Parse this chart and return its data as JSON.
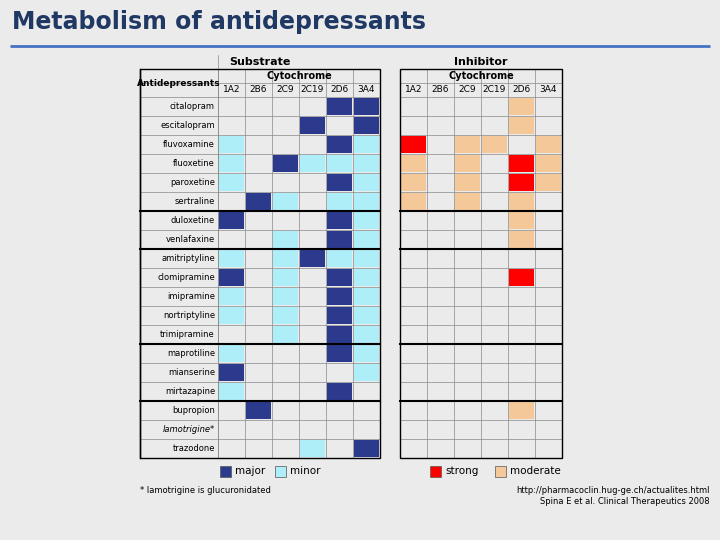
{
  "title": "Metabolism of antidepressants",
  "title_color": "#1F3864",
  "subtitle_url": "http://pharmacoclin.hug-ge.ch/actualites.html",
  "subtitle_ref": "Spina E et al. Clinical Therapeutics 2008",
  "footnote": "* lamotrigine is glucuronidated",
  "antidepressants": [
    "citalopram",
    "escitalopram",
    "fluvoxamine",
    "fluoxetine",
    "paroxetine",
    "sertraline",
    "duloxetine",
    "venlafaxine",
    "amitriptyline",
    "clomipramine",
    "imipramine",
    "nortriptyline",
    "trimipramine",
    "maprotiline",
    "mianserine",
    "mirtazapine",
    "bupropion",
    "lamotrigine*",
    "trazodone"
  ],
  "group_separators": [
    6,
    8,
    13,
    16
  ],
  "cytochromes": [
    "1A2",
    "2B6",
    "2C9",
    "2C19",
    "2D6",
    "3A4"
  ],
  "major_color": "#2B3A8C",
  "minor_color": "#AEEEF8",
  "strong_color": "#FF0000",
  "moderate_color": "#F5C89A",
  "bg_color": "#F0F0F0",
  "substrate_major": {
    "citalopram": [
      0,
      0,
      0,
      0,
      1,
      1
    ],
    "escitalopram": [
      0,
      0,
      0,
      1,
      0,
      1
    ],
    "fluvoxamine": [
      0,
      0,
      0,
      0,
      1,
      0
    ],
    "fluoxetine": [
      0,
      0,
      1,
      0,
      0,
      0
    ],
    "paroxetine": [
      0,
      0,
      0,
      0,
      1,
      0
    ],
    "sertraline": [
      0,
      1,
      0,
      0,
      0,
      0
    ],
    "duloxetine": [
      1,
      0,
      0,
      0,
      1,
      0
    ],
    "venlafaxine": [
      0,
      0,
      0,
      0,
      1,
      0
    ],
    "amitriptyline": [
      0,
      0,
      0,
      1,
      0,
      0
    ],
    "clomipramine": [
      1,
      0,
      0,
      0,
      1,
      0
    ],
    "imipramine": [
      0,
      0,
      0,
      0,
      1,
      0
    ],
    "nortriptyline": [
      0,
      0,
      0,
      0,
      1,
      0
    ],
    "trimipramine": [
      0,
      0,
      0,
      0,
      1,
      0
    ],
    "maprotiline": [
      0,
      0,
      0,
      0,
      1,
      0
    ],
    "mianserine": [
      1,
      0,
      0,
      0,
      0,
      0
    ],
    "mirtazapine": [
      0,
      0,
      0,
      0,
      1,
      0
    ],
    "bupropion": [
      0,
      1,
      0,
      0,
      0,
      0
    ],
    "lamotrigine*": [
      0,
      0,
      0,
      0,
      0,
      0
    ],
    "trazodone": [
      0,
      0,
      0,
      0,
      0,
      1
    ]
  },
  "substrate_minor": {
    "citalopram": [
      0,
      0,
      0,
      0,
      0,
      0
    ],
    "escitalopram": [
      0,
      0,
      0,
      0,
      0,
      0
    ],
    "fluvoxamine": [
      1,
      0,
      0,
      0,
      0,
      1
    ],
    "fluoxetine": [
      1,
      0,
      0,
      1,
      1,
      1
    ],
    "paroxetine": [
      1,
      0,
      0,
      0,
      0,
      1
    ],
    "sertraline": [
      0,
      0,
      1,
      0,
      1,
      1
    ],
    "duloxetine": [
      0,
      0,
      0,
      0,
      0,
      1
    ],
    "venlafaxine": [
      0,
      0,
      1,
      0,
      0,
      1
    ],
    "amitriptyline": [
      1,
      0,
      1,
      0,
      1,
      1
    ],
    "clomipramine": [
      0,
      0,
      1,
      0,
      0,
      1
    ],
    "imipramine": [
      1,
      0,
      1,
      0,
      0,
      1
    ],
    "nortriptyline": [
      1,
      0,
      1,
      0,
      0,
      1
    ],
    "trimipramine": [
      0,
      0,
      1,
      0,
      0,
      1
    ],
    "maprotiline": [
      1,
      0,
      0,
      0,
      0,
      1
    ],
    "mianserine": [
      0,
      0,
      0,
      0,
      0,
      1
    ],
    "mirtazapine": [
      1,
      0,
      0,
      0,
      0,
      0
    ],
    "bupropion": [
      0,
      0,
      0,
      0,
      0,
      0
    ],
    "lamotrigine*": [
      0,
      0,
      0,
      0,
      0,
      0
    ],
    "trazodone": [
      0,
      0,
      0,
      1,
      0,
      0
    ]
  },
  "inhibitor_strong": {
    "citalopram": [
      0,
      0,
      0,
      0,
      0,
      0
    ],
    "escitalopram": [
      0,
      0,
      0,
      0,
      0,
      0
    ],
    "fluvoxamine": [
      1,
      0,
      0,
      0,
      0,
      0
    ],
    "fluoxetine": [
      0,
      0,
      0,
      0,
      1,
      0
    ],
    "paroxetine": [
      0,
      0,
      0,
      0,
      1,
      0
    ],
    "sertraline": [
      0,
      0,
      0,
      0,
      0,
      0
    ],
    "duloxetine": [
      0,
      0,
      0,
      0,
      0,
      0
    ],
    "venlafaxine": [
      0,
      0,
      0,
      0,
      0,
      0
    ],
    "amitriptyline": [
      0,
      0,
      0,
      0,
      0,
      0
    ],
    "clomipramine": [
      0,
      0,
      0,
      0,
      1,
      0
    ],
    "imipramine": [
      0,
      0,
      0,
      0,
      0,
      0
    ],
    "nortriptyline": [
      0,
      0,
      0,
      0,
      0,
      0
    ],
    "trimipramine": [
      0,
      0,
      0,
      0,
      0,
      0
    ],
    "maprotiline": [
      0,
      0,
      0,
      0,
      0,
      0
    ],
    "mianserine": [
      0,
      0,
      0,
      0,
      0,
      0
    ],
    "mirtazapine": [
      0,
      0,
      0,
      0,
      0,
      0
    ],
    "bupropion": [
      0,
      0,
      0,
      0,
      0,
      0
    ],
    "lamotrigine*": [
      0,
      0,
      0,
      0,
      0,
      0
    ],
    "trazodone": [
      0,
      0,
      0,
      0,
      0,
      0
    ]
  },
  "inhibitor_moderate": {
    "citalopram": [
      0,
      0,
      0,
      0,
      1,
      0
    ],
    "escitalopram": [
      0,
      0,
      0,
      0,
      1,
      0
    ],
    "fluvoxamine": [
      0,
      0,
      1,
      1,
      0,
      1
    ],
    "fluoxetine": [
      1,
      0,
      1,
      0,
      0,
      1
    ],
    "paroxetine": [
      1,
      0,
      1,
      0,
      0,
      1
    ],
    "sertraline": [
      1,
      0,
      1,
      0,
      1,
      0
    ],
    "duloxetine": [
      0,
      0,
      0,
      0,
      1,
      0
    ],
    "venlafaxine": [
      0,
      0,
      0,
      0,
      1,
      0
    ],
    "amitriptyline": [
      0,
      0,
      0,
      0,
      0,
      0
    ],
    "clomipramine": [
      0,
      0,
      0,
      0,
      0,
      0
    ],
    "imipramine": [
      0,
      0,
      0,
      0,
      0,
      0
    ],
    "nortriptyline": [
      0,
      0,
      0,
      0,
      0,
      0
    ],
    "trimipramine": [
      0,
      0,
      0,
      0,
      0,
      0
    ],
    "maprotiline": [
      0,
      0,
      0,
      0,
      0,
      0
    ],
    "mianserine": [
      0,
      0,
      0,
      0,
      0,
      0
    ],
    "mirtazapine": [
      0,
      0,
      0,
      0,
      0,
      0
    ],
    "bupropion": [
      0,
      0,
      0,
      0,
      1,
      0
    ],
    "lamotrigine*": [
      0,
      0,
      0,
      0,
      0,
      0
    ],
    "trazodone": [
      0,
      0,
      0,
      0,
      0,
      0
    ]
  }
}
